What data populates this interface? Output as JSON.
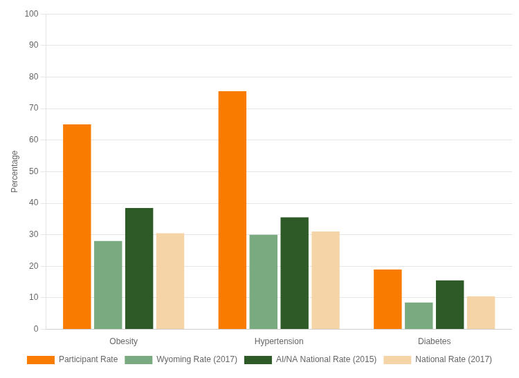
{
  "chart_data": {
    "type": "bar",
    "categories": [
      "Obesity",
      "Hypertension",
      "Diabetes"
    ],
    "series": [
      {
        "name": "Participant Rate",
        "color": "#F97B00",
        "values": [
          65,
          75.5,
          19
        ]
      },
      {
        "name": "Wyoming Rate (2017)",
        "color": "#7aaa80",
        "values": [
          28,
          30,
          8.5
        ]
      },
      {
        "name": "AI/NA National Rate (2015)",
        "color": "#2d5a27",
        "values": [
          38.5,
          35.5,
          15.5
        ]
      },
      {
        "name": "National Rate (2017)",
        "color": "#f5d5a8",
        "values": [
          30.5,
          31,
          10.5
        ]
      }
    ],
    "ylabel": "Percentage",
    "ylim": [
      0,
      100
    ],
    "yticks": [
      0,
      10,
      20,
      30,
      40,
      50,
      60,
      70,
      80,
      90,
      100
    ],
    "grid": true,
    "legend": "bottom"
  }
}
